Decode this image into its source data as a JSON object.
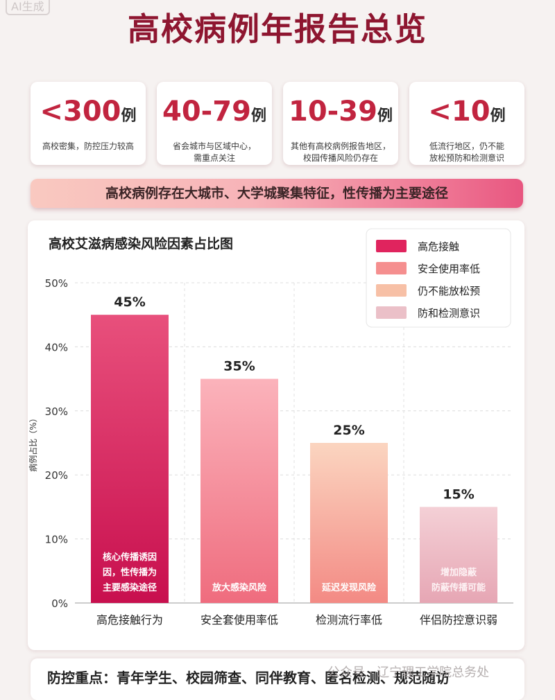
{
  "header": {
    "title": "高校病例年报告总览",
    "watermark": "AI生成"
  },
  "stats": [
    {
      "value": "<300",
      "unit": "例",
      "desc": "高校密集，防控压力较高"
    },
    {
      "value": "40-79",
      "unit": "例",
      "desc": "省会城市与区域中心，\n需重点关注"
    },
    {
      "value": "10-39",
      "unit": "例",
      "desc": "其他有高校病例报告地区，\n校园传播风险仍存在"
    },
    {
      "value": "<10",
      "unit": "例",
      "desc": "低流行地区，仍不能\n放松预防和检测意识"
    }
  ],
  "banner": {
    "text": "高校病例存在大城市、大学城聚集特征，性传播为主要途径"
  },
  "chart_data": {
    "type": "bar",
    "title": "高校艾滋病感染风险因素占比图",
    "ylabel": "病例占比（%）",
    "ylim": [
      0,
      50
    ],
    "yticks": [
      "0%",
      "10%",
      "20%",
      "30%",
      "40%",
      "50%"
    ],
    "categories": [
      "高危接触行为",
      "安全套使用率低",
      "检测流行率低",
      "伴侣防控意识弱"
    ],
    "values": [
      45,
      35,
      25,
      15
    ],
    "value_labels": [
      "45%",
      "35%",
      "25%",
      "15%"
    ],
    "bar_notes": [
      [
        "核心传播诱因",
        "因，性传播为",
        "主要感染途径"
      ],
      [
        "放大感染风险"
      ],
      [
        "延迟发现风险"
      ],
      [
        "增加隐蔽",
        "防蔽传播可能"
      ]
    ],
    "legend": [
      "高危接触",
      "安全使用率低",
      "仍不能放松预",
      "防和检测意识"
    ],
    "legend_position": "top-right",
    "colors": [
      "#e0245e",
      "#f58f8f",
      "#f7c0a6",
      "#ebc0c8"
    ],
    "grid": true
  },
  "footer": {
    "text": "防控重点：青年学生、校园筛查、同伴教育、匿名检测、规范随访"
  },
  "watermark_br": "公众号 · 辽宁理工学院总务处"
}
